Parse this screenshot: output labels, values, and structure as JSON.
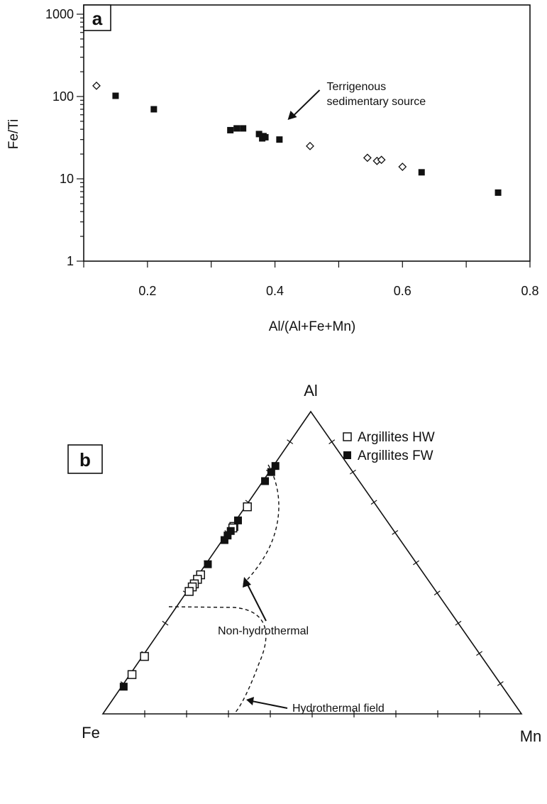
{
  "chart_data": [
    {
      "panel": "a",
      "type": "scatter",
      "xlabel": "Al/(Al+Fe+Mn)",
      "ylabel": "Fe/Ti",
      "xlim": [
        0.1,
        0.8
      ],
      "ylim": [
        1,
        1000
      ],
      "y_scale": "log",
      "x_ticks": [
        0.2,
        0.4,
        0.6,
        0.8
      ],
      "x_tick_labels": [
        "0.2",
        "0.4",
        "0.6",
        "0.8"
      ],
      "y_ticks": [
        1,
        10,
        100,
        1000
      ],
      "y_tick_labels": [
        "1",
        "10",
        "100",
        "1000"
      ],
      "annotation": {
        "lines": [
          "Terrigenous",
          "sedimentary source"
        ],
        "x": 0.42,
        "y": 52
      },
      "series": [
        {
          "marker": "filled-square",
          "points": [
            {
              "x": 0.15,
              "y": 102
            },
            {
              "x": 0.21,
              "y": 70
            },
            {
              "x": 0.33,
              "y": 39
            },
            {
              "x": 0.34,
              "y": 41
            },
            {
              "x": 0.35,
              "y": 41
            },
            {
              "x": 0.375,
              "y": 35
            },
            {
              "x": 0.38,
              "y": 31
            },
            {
              "x": 0.382,
              "y": 33
            },
            {
              "x": 0.385,
              "y": 32
            },
            {
              "x": 0.407,
              "y": 30
            },
            {
              "x": 0.63,
              "y": 12
            },
            {
              "x": 0.75,
              "y": 6.8
            }
          ]
        },
        {
          "marker": "open-diamond",
          "points": [
            {
              "x": 0.12,
              "y": 135
            },
            {
              "x": 0.455,
              "y": 25
            },
            {
              "x": 0.545,
              "y": 18
            },
            {
              "x": 0.56,
              "y": 16.5
            },
            {
              "x": 0.567,
              "y": 17
            },
            {
              "x": 0.6,
              "y": 14
            }
          ]
        }
      ]
    },
    {
      "panel": "b",
      "type": "ternary",
      "vertices": {
        "top": "Al",
        "left": "Fe",
        "right": "Mn"
      },
      "fields": [
        {
          "label": "Non-hydrothermal"
        },
        {
          "label": "Hydrothermal field"
        }
      ],
      "series": [
        {
          "name": "Argillites HW",
          "marker": "open-square",
          "points": [
            {
              "Al": 0.685,
              "Fe": 0.31,
              "Mn": 0.005
            },
            {
              "Al": 0.62,
              "Fe": 0.375,
              "Mn": 0.005
            },
            {
              "Al": 0.615,
              "Fe": 0.38,
              "Mn": 0.005
            },
            {
              "Al": 0.46,
              "Fe": 0.535,
              "Mn": 0.005
            },
            {
              "Al": 0.445,
              "Fe": 0.55,
              "Mn": 0.005
            },
            {
              "Al": 0.43,
              "Fe": 0.565,
              "Mn": 0.005
            },
            {
              "Al": 0.42,
              "Fe": 0.575,
              "Mn": 0.005
            },
            {
              "Al": 0.405,
              "Fe": 0.59,
              "Mn": 0.005
            },
            {
              "Al": 0.19,
              "Fe": 0.805,
              "Mn": 0.005
            },
            {
              "Al": 0.13,
              "Fe": 0.865,
              "Mn": 0.005
            }
          ]
        },
        {
          "name": "Argillites FW",
          "marker": "filled-square",
          "points": [
            {
              "Al": 0.82,
              "Fe": 0.175,
              "Mn": 0.005
            },
            {
              "Al": 0.8,
              "Fe": 0.195,
              "Mn": 0.005
            },
            {
              "Al": 0.77,
              "Fe": 0.225,
              "Mn": 0.005
            },
            {
              "Al": 0.64,
              "Fe": 0.355,
              "Mn": 0.005
            },
            {
              "Al": 0.605,
              "Fe": 0.39,
              "Mn": 0.005
            },
            {
              "Al": 0.59,
              "Fe": 0.405,
              "Mn": 0.005
            },
            {
              "Al": 0.575,
              "Fe": 0.42,
              "Mn": 0.005
            },
            {
              "Al": 0.495,
              "Fe": 0.5,
              "Mn": 0.005
            },
            {
              "Al": 0.09,
              "Fe": 0.905,
              "Mn": 0.005
            }
          ]
        }
      ]
    }
  ]
}
